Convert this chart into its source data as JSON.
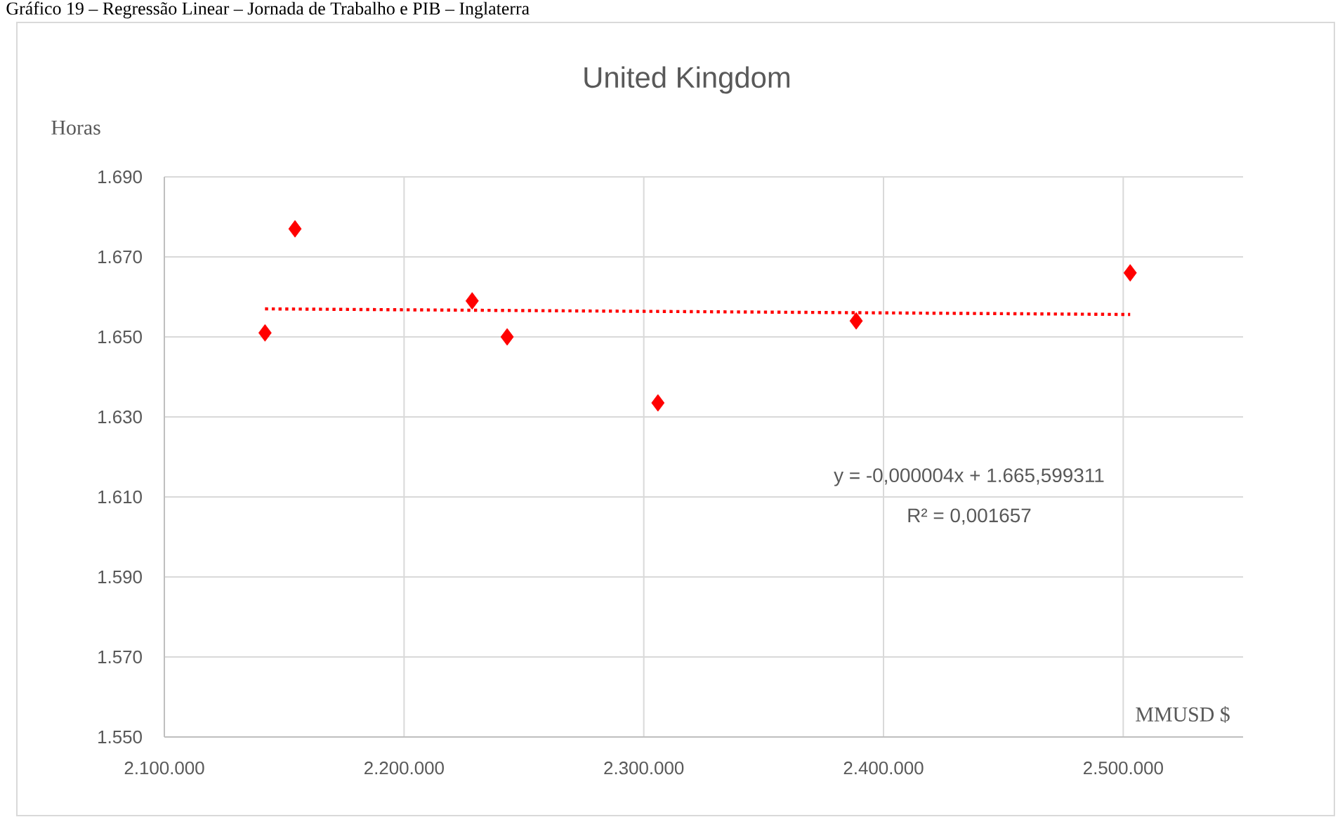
{
  "chart_data": {
    "type": "scatter",
    "title": "United Kingdom",
    "xlabel": "MMUSD $",
    "ylabel": "Horas",
    "annotations": [
      "Gráfico 19 – Regressão Linear – Jornada de Trabalho e PIB – Inglaterra",
      "y = -0,000004x + 1.665,599311",
      "R² = 0,001657"
    ],
    "x": [
      2142000,
      2154500,
      2228400,
      2243000,
      2305900,
      2388600,
      2502900
    ],
    "series": [
      {
        "color": "#ff0000",
        "marker": "diamond",
        "values": [
          1651,
          1677,
          1659,
          1650,
          1633.5,
          1654,
          1666
        ]
      },
      {
        "type": "line",
        "color": "#ff0000",
        "line_style": "dotted",
        "marker": "none",
        "x": [
          2142000,
          2502900
        ],
        "values": [
          1657.0,
          1655.6
        ]
      }
    ],
    "xlim": [
      2100000,
      2550000
    ],
    "ylim": [
      1550,
      1690
    ],
    "xticks": [
      {
        "value": 2100000,
        "label": "2.100.000"
      },
      {
        "value": 2200000,
        "label": "2.200.000"
      },
      {
        "value": 2300000,
        "label": "2.300.000"
      },
      {
        "value": 2400000,
        "label": "2.400.000"
      },
      {
        "value": 2500000,
        "label": "2.500.000"
      }
    ],
    "yticks": [
      {
        "value": 1550,
        "label": "1.550"
      },
      {
        "value": 1570,
        "label": "1.570"
      },
      {
        "value": 1590,
        "label": "1.590"
      },
      {
        "value": 1610,
        "label": "1.610"
      },
      {
        "value": 1630,
        "label": "1.630"
      },
      {
        "value": 1650,
        "label": "1.650"
      },
      {
        "value": 1670,
        "label": "1.670"
      },
      {
        "value": 1690,
        "label": "1.690"
      }
    ],
    "grid": true
  }
}
